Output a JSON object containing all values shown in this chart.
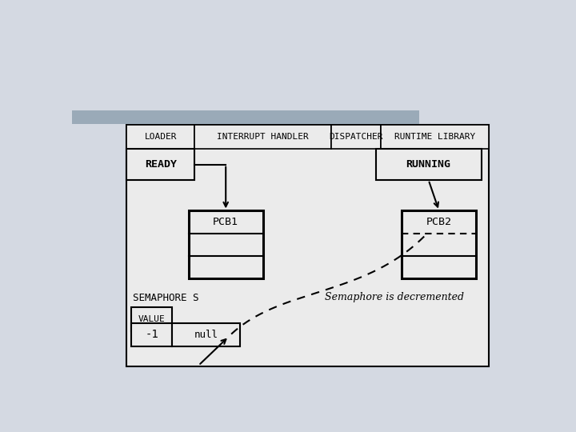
{
  "bg_color": "#d4d9e2",
  "stripe_color": "#9aaab8",
  "box_bg": "#ebebeb",
  "box_edge": "#000000",
  "header_labels": [
    "LOADER",
    "INTERRUPT HANDLER",
    "DISPATCHER",
    "RUNTIME LIBRARY"
  ],
  "ready_label": "READY",
  "running_label": "RUNNING",
  "pcb1_label": "PCB1",
  "pcb2_label": "PCB2",
  "semaphore_label": "SEMAPHORE S",
  "value_label": "VALUE",
  "value_num": "-1",
  "null_label": "null",
  "italic_label": "Semaphore is decremented"
}
